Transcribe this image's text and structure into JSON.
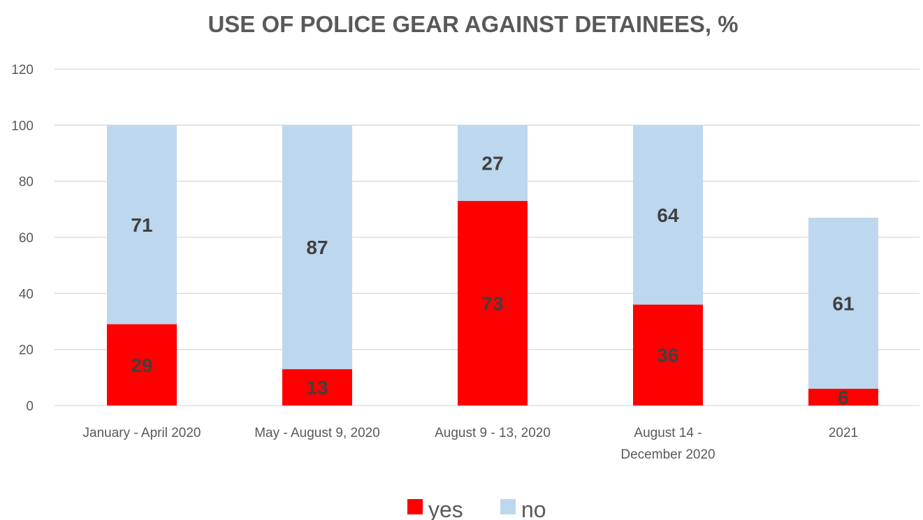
{
  "chart_data": {
    "type": "bar",
    "stacked": true,
    "title": "USE OF POLICE GEAR AGAINST DETAINEES, %",
    "categories": [
      [
        "January - April 2020"
      ],
      [
        "May - August 9, 2020"
      ],
      [
        "August 9 - 13, 2020"
      ],
      [
        "August 14 -",
        "December 2020"
      ],
      [
        "2021"
      ]
    ],
    "series": [
      {
        "name": "yes",
        "color": "#ff0000",
        "values": [
          29,
          13,
          73,
          36,
          6
        ]
      },
      {
        "name": "no",
        "color": "#bdd7ee",
        "values": [
          71,
          87,
          27,
          64,
          61
        ]
      }
    ],
    "ylim": [
      0,
      120
    ],
    "yticks": [
      "0",
      "20",
      "40",
      "60",
      "80",
      "100",
      "120"
    ],
    "grid": true,
    "legend": "bottom-center",
    "data_labels": true
  }
}
